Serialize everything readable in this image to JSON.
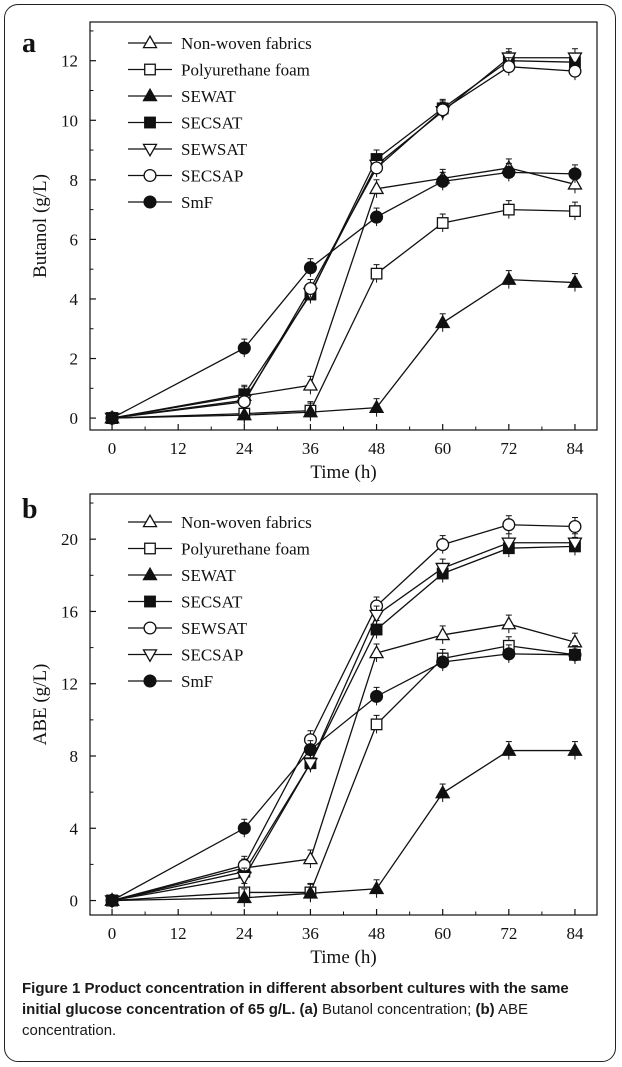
{
  "chart_data": [
    {
      "panel_label": "a",
      "type": "line",
      "xlabel": "Time (h)",
      "ylabel": "Butanol (g/L)",
      "x": [
        0,
        24,
        36,
        48,
        60,
        72,
        84
      ],
      "xticks": [
        "0",
        "12",
        "24",
        "36",
        "48",
        "60",
        "72",
        "84"
      ],
      "yticks": [
        "0",
        "2",
        "4",
        "6",
        "8",
        "10",
        "12"
      ],
      "xlim": [
        -4,
        88
      ],
      "ylim": [
        -0.4,
        13.3
      ],
      "series": [
        {
          "name": "Non-woven fabrics",
          "marker": "triangle-up-open",
          "values": [
            0.0,
            0.75,
            1.1,
            7.7,
            8.05,
            8.4,
            7.85
          ]
        },
        {
          "name": "Polyurethane foam",
          "marker": "square-open",
          "values": [
            0.0,
            0.15,
            0.25,
            4.85,
            6.55,
            7.0,
            6.95
          ]
        },
        {
          "name": "SEWAT",
          "marker": "triangle-up-filled",
          "values": [
            0.0,
            0.1,
            0.2,
            0.35,
            3.2,
            4.65,
            4.55
          ]
        },
        {
          "name": "SECSAT",
          "marker": "square-filled",
          "values": [
            0.0,
            0.8,
            4.15,
            8.7,
            10.4,
            12.0,
            11.95
          ]
        },
        {
          "name": "SEWSAT",
          "marker": "triangle-down-open",
          "values": [
            0.0,
            0.6,
            4.2,
            8.5,
            10.3,
            12.1,
            12.1
          ]
        },
        {
          "name": "SECSAP",
          "marker": "circle-open",
          "values": [
            0.0,
            0.55,
            4.35,
            8.4,
            10.35,
            11.8,
            11.65
          ]
        },
        {
          "name": "SmF",
          "marker": "circle-filled",
          "values": [
            0.0,
            2.35,
            5.05,
            6.75,
            7.95,
            8.25,
            8.2
          ]
        }
      ]
    },
    {
      "panel_label": "b",
      "type": "line",
      "xlabel": "Time (h)",
      "ylabel": "ABE (g/L)",
      "x": [
        0,
        24,
        36,
        48,
        60,
        72,
        84
      ],
      "xticks": [
        "0",
        "12",
        "24",
        "36",
        "48",
        "60",
        "72",
        "84"
      ],
      "yticks": [
        "0",
        "4",
        "8",
        "12",
        "16",
        "20"
      ],
      "xlim": [
        -4,
        88
      ],
      "ylim": [
        -0.8,
        22.5
      ],
      "series": [
        {
          "name": "Non-woven fabrics",
          "marker": "triangle-up-open",
          "values": [
            0.0,
            1.8,
            2.3,
            13.7,
            14.7,
            15.3,
            14.3
          ]
        },
        {
          "name": "Polyurethane foam",
          "marker": "square-open",
          "values": [
            0.0,
            0.45,
            0.45,
            9.75,
            13.4,
            14.1,
            13.6
          ]
        },
        {
          "name": "SEWAT",
          "marker": "triangle-up-filled",
          "values": [
            0.0,
            0.15,
            0.4,
            0.65,
            5.95,
            8.3,
            8.3
          ]
        },
        {
          "name": "SECSAT",
          "marker": "square-filled",
          "values": [
            0.0,
            1.6,
            7.6,
            15.0,
            18.1,
            19.5,
            19.6
          ]
        },
        {
          "name": "SEWSAT",
          "marker": "circle-open",
          "values": [
            0.0,
            1.95,
            8.9,
            16.3,
            19.7,
            20.8,
            20.7
          ]
        },
        {
          "name": "SECSAP",
          "marker": "triangle-down-open",
          "values": [
            0.0,
            1.3,
            7.6,
            15.8,
            18.4,
            19.8,
            19.8
          ]
        },
        {
          "name": "SmF",
          "marker": "circle-filled",
          "values": [
            0.0,
            4.0,
            8.35,
            11.3,
            13.2,
            13.65,
            13.6
          ]
        }
      ]
    }
  ],
  "caption": {
    "bold": "Figure 1 Product concentration in different absorbent cultures with the same initial glucose concentration of 65 g/L. (a)",
    "part1": " Butanol concentration; ",
    "bold2": "(b)",
    "part2": " ABE concentration."
  }
}
